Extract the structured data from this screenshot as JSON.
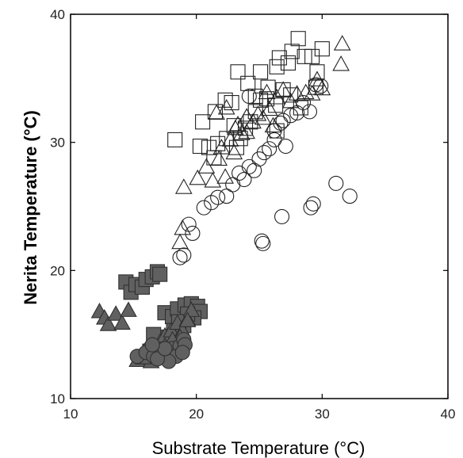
{
  "chart_data": {
    "type": "scatter",
    "title": "",
    "xlabel": "Substrate Temperature (°C)",
    "ylabel": "Nerita Temperature (°C)",
    "xlim": [
      10,
      40
    ],
    "ylim": [
      10,
      40
    ],
    "xticks": [
      "10",
      "20",
      "30",
      "40"
    ],
    "yticks": [
      "10",
      "20",
      "30",
      "40"
    ],
    "grid": false,
    "legend": "none",
    "series": [
      {
        "marker": "square",
        "fill": "none",
        "points": [
          [
            18.3,
            30.2
          ],
          [
            20.5,
            31.6
          ],
          [
            21.5,
            32.4
          ],
          [
            22.3,
            33.3
          ],
          [
            22.8,
            33.1
          ],
          [
            23.3,
            35.5
          ],
          [
            24.1,
            34.6
          ],
          [
            24.7,
            33.6
          ],
          [
            25.1,
            35.5
          ],
          [
            25.7,
            34.3
          ],
          [
            26.4,
            35.9
          ],
          [
            26.6,
            36.6
          ],
          [
            27.3,
            36.2
          ],
          [
            27.6,
            37.1
          ],
          [
            28.1,
            38.1
          ],
          [
            28.6,
            36.7
          ],
          [
            29.2,
            36.7
          ],
          [
            29.6,
            35.5
          ],
          [
            30.0,
            37.3
          ],
          [
            29.5,
            34.3
          ],
          [
            28.3,
            32.7
          ],
          [
            27.5,
            33.7
          ],
          [
            26.9,
            34.1
          ],
          [
            26.3,
            32.9
          ],
          [
            25.6,
            33.4
          ],
          [
            25.1,
            33.3
          ],
          [
            24.7,
            32.4
          ],
          [
            24.3,
            31.6
          ],
          [
            23.9,
            31.1
          ],
          [
            23.5,
            30.3
          ],
          [
            23.2,
            29.6
          ],
          [
            22.4,
            30.3
          ],
          [
            21.7,
            29.9
          ],
          [
            21.0,
            29.6
          ],
          [
            20.3,
            29.7
          ],
          [
            21.4,
            28.8
          ],
          [
            23.0,
            31.3
          ],
          [
            26.4,
            30.9
          ]
        ]
      },
      {
        "marker": "triangle",
        "fill": "none",
        "points": [
          [
            18.7,
            22.2
          ],
          [
            18.9,
            23.3
          ],
          [
            19.0,
            26.5
          ],
          [
            20.1,
            27.2
          ],
          [
            20.8,
            28.1
          ],
          [
            21.3,
            27.0
          ],
          [
            21.8,
            28.7
          ],
          [
            22.3,
            27.3
          ],
          [
            22.7,
            30.2
          ],
          [
            23.1,
            31.1
          ],
          [
            23.6,
            30.7
          ],
          [
            24.0,
            32.0
          ],
          [
            24.5,
            31.6
          ],
          [
            24.9,
            32.2
          ],
          [
            25.3,
            31.9
          ],
          [
            25.8,
            32.6
          ],
          [
            26.4,
            33.5
          ],
          [
            26.9,
            34.1
          ],
          [
            27.5,
            33.2
          ],
          [
            28.0,
            33.8
          ],
          [
            28.7,
            33.9
          ],
          [
            29.2,
            33.8
          ],
          [
            29.6,
            34.9
          ],
          [
            30.0,
            34.2
          ],
          [
            31.6,
            37.7
          ],
          [
            31.5,
            36.1
          ],
          [
            22.4,
            32.7
          ],
          [
            21.6,
            32.3
          ],
          [
            23.0,
            29.2
          ],
          [
            24.0,
            30.8
          ],
          [
            25.6,
            33.9
          ],
          [
            26.1,
            31.3
          ],
          [
            22.0,
            29.6
          ],
          [
            23.3,
            31.4
          ]
        ]
      },
      {
        "marker": "circle",
        "fill": "none",
        "points": [
          [
            18.7,
            21.0
          ],
          [
            19.0,
            21.2
          ],
          [
            19.4,
            23.6
          ],
          [
            19.7,
            22.9
          ],
          [
            20.6,
            24.9
          ],
          [
            21.2,
            25.3
          ],
          [
            21.7,
            25.7
          ],
          [
            22.4,
            25.8
          ],
          [
            22.9,
            26.7
          ],
          [
            23.4,
            27.6
          ],
          [
            23.8,
            27.1
          ],
          [
            24.2,
            28.1
          ],
          [
            24.6,
            27.8
          ],
          [
            25.0,
            28.7
          ],
          [
            25.4,
            29.2
          ],
          [
            25.8,
            29.5
          ],
          [
            26.2,
            30.2
          ],
          [
            26.7,
            31.5
          ],
          [
            27.1,
            29.7
          ],
          [
            26.9,
            31.7
          ],
          [
            27.5,
            32.1
          ],
          [
            28.0,
            32.3
          ],
          [
            28.5,
            33.1
          ],
          [
            29.0,
            32.4
          ],
          [
            29.5,
            34.5
          ],
          [
            29.9,
            34.4
          ],
          [
            25.2,
            22.3
          ],
          [
            25.3,
            22.1
          ],
          [
            26.8,
            24.2
          ],
          [
            29.1,
            24.9
          ],
          [
            29.3,
            25.2
          ],
          [
            31.1,
            26.8
          ],
          [
            32.2,
            25.8
          ],
          [
            24.2,
            33.6
          ],
          [
            26.2,
            30.9
          ]
        ]
      },
      {
        "marker": "square",
        "fill": "#606060",
        "points": [
          [
            14.4,
            19.1
          ],
          [
            14.8,
            18.3
          ],
          [
            15.2,
            18.9
          ],
          [
            15.7,
            18.7
          ],
          [
            16.0,
            19.3
          ],
          [
            16.5,
            19.5
          ],
          [
            16.9,
            19.9
          ],
          [
            17.1,
            19.7
          ],
          [
            17.5,
            16.7
          ],
          [
            18.1,
            16.4
          ],
          [
            18.5,
            17.0
          ],
          [
            19.1,
            17.3
          ],
          [
            19.6,
            17.4
          ],
          [
            20.1,
            17.2
          ],
          [
            20.3,
            16.8
          ],
          [
            19.8,
            16.3
          ],
          [
            19.3,
            16.6
          ],
          [
            19.0,
            15.7
          ],
          [
            18.6,
            16.0
          ],
          [
            18.2,
            15.3
          ],
          [
            17.8,
            14.8
          ],
          [
            17.3,
            14.3
          ],
          [
            16.8,
            14.0
          ],
          [
            16.3,
            13.7
          ],
          [
            16.6,
            15.0
          ]
        ]
      },
      {
        "marker": "triangle",
        "fill": "#606060",
        "points": [
          [
            12.3,
            16.8
          ],
          [
            12.7,
            16.3
          ],
          [
            13.0,
            15.8
          ],
          [
            13.6,
            16.6
          ],
          [
            14.1,
            15.9
          ],
          [
            14.6,
            16.9
          ],
          [
            15.3,
            13.0
          ],
          [
            15.9,
            13.7
          ],
          [
            16.3,
            14.0
          ],
          [
            16.7,
            13.6
          ],
          [
            17.1,
            14.4
          ],
          [
            17.5,
            14.9
          ],
          [
            18.0,
            15.3
          ],
          [
            18.5,
            15.9
          ],
          [
            18.9,
            15.3
          ],
          [
            19.3,
            16.2
          ],
          [
            19.6,
            16.9
          ],
          [
            19.3,
            16.1
          ],
          [
            18.7,
            14.8
          ],
          [
            18.1,
            14.6
          ],
          [
            17.5,
            14.1
          ],
          [
            16.9,
            13.4
          ],
          [
            16.4,
            12.9
          ],
          [
            15.8,
            13.2
          ]
        ]
      },
      {
        "marker": "circle",
        "fill": "#606060",
        "points": [
          [
            15.3,
            13.3
          ],
          [
            16.0,
            13.6
          ],
          [
            16.6,
            13.3
          ],
          [
            17.3,
            13.7
          ],
          [
            18.1,
            13.9
          ],
          [
            18.7,
            14.1
          ],
          [
            19.0,
            14.6
          ],
          [
            18.4,
            13.3
          ],
          [
            19.1,
            14.2
          ],
          [
            17.8,
            12.9
          ],
          [
            16.9,
            13.1
          ],
          [
            17.5,
            13.9
          ],
          [
            18.9,
            13.6
          ],
          [
            16.5,
            14.2
          ]
        ]
      }
    ]
  }
}
